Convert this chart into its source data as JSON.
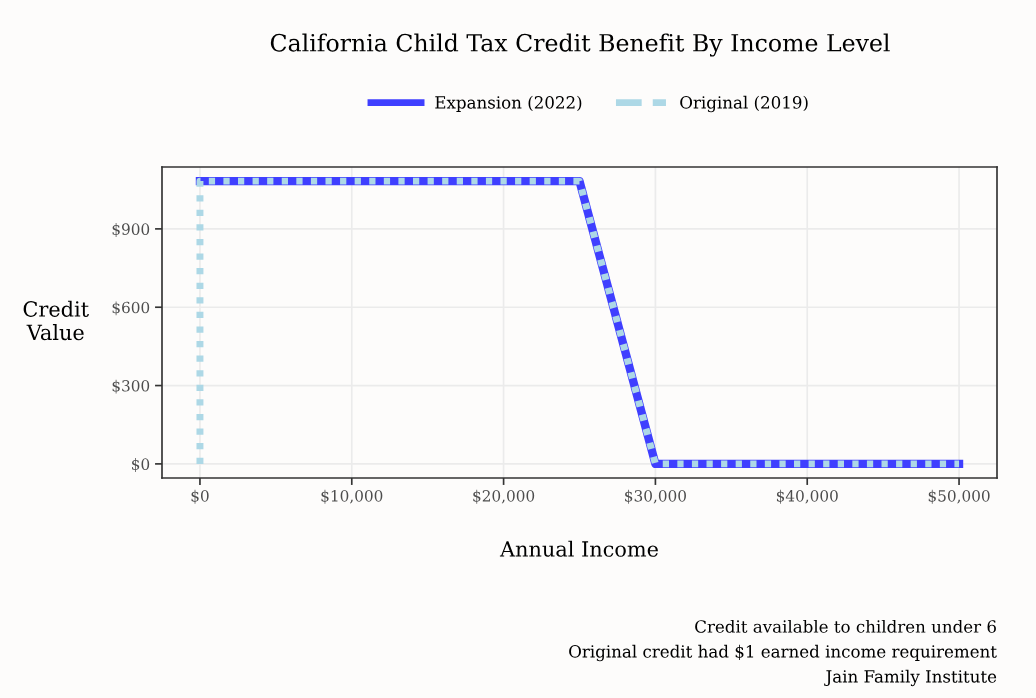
{
  "chart_data": {
    "type": "line",
    "title": "California Child Tax Credit Benefit By Income Level",
    "xlabel": "Annual Income",
    "ylabel": "Credit\nValue",
    "annotations": [
      "Credit available to children under 6",
      "Original credit had $1 earned income requirement",
      "Jain Family Institute"
    ],
    "series": [
      {
        "name": "Expansion (2022)",
        "color": "#3f3fff",
        "line_style": "solid",
        "x": [
          0,
          25000,
          30000,
          50000
        ],
        "values": [
          1083,
          1083,
          0,
          0
        ]
      },
      {
        "name": "Original (2019)",
        "color": "#add8e6",
        "line_style": "dotted",
        "x": [
          0,
          0,
          25000,
          30000,
          50000
        ],
        "values": [
          0,
          1083,
          1083,
          0,
          0
        ]
      }
    ],
    "xlim": [
      -2500,
      52500
    ],
    "ylim": [
      -54,
      1137
    ],
    "xticks": [
      {
        "value": 0,
        "label": "$0"
      },
      {
        "value": 10000,
        "label": "$10,000"
      },
      {
        "value": 20000,
        "label": "$20,000"
      },
      {
        "value": 30000,
        "label": "$30,000"
      },
      {
        "value": 40000,
        "label": "$40,000"
      },
      {
        "value": 50000,
        "label": "$50,000"
      }
    ],
    "yticks": [
      {
        "value": 0,
        "label": "$0"
      },
      {
        "value": 300,
        "label": "$300"
      },
      {
        "value": 600,
        "label": "$600"
      },
      {
        "value": 900,
        "label": "$900"
      }
    ],
    "grid": true,
    "legend": "top",
    "marker": "none"
  }
}
